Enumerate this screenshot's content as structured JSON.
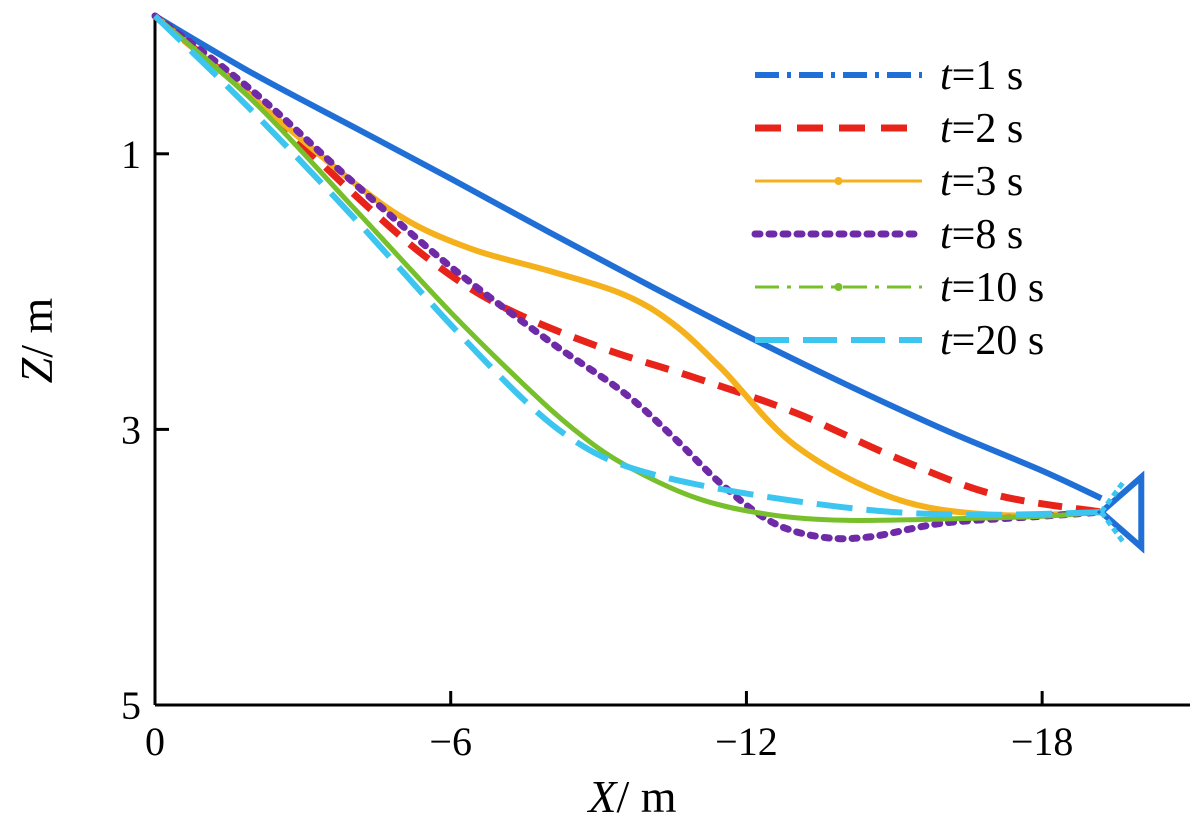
{
  "chart_data": {
    "type": "line",
    "xlabel": {
      "var": "X",
      "unit": "/ m"
    },
    "ylabel": {
      "var": "Z",
      "unit": "/ m"
    },
    "xlim": [
      0,
      -21
    ],
    "ylim": [
      0,
      5
    ],
    "y_inverted": true,
    "x_ticks": [
      0,
      -6,
      -12,
      -18
    ],
    "x_tick_labels": [
      "0",
      "−6",
      "−12",
      "−18"
    ],
    "y_ticks": [
      1,
      3,
      5
    ],
    "y_tick_labels": [
      "1",
      "3",
      "5"
    ],
    "grid": false,
    "legend_position": "top-right",
    "series": [
      {
        "name": "t=1 s",
        "name_var": "t",
        "name_rest": "=1 s",
        "color": "#1f6fd6",
        "dash": "solid",
        "legend_dash": "dashdot",
        "width": 6,
        "x": [
          0,
          -2,
          -4,
          -6,
          -8,
          -10,
          -12,
          -14,
          -16,
          -18,
          -19.2
        ],
        "y": [
          0,
          0.42,
          0.8,
          1.18,
          1.57,
          1.95,
          2.32,
          2.67,
          3.0,
          3.3,
          3.5
        ]
      },
      {
        "name": "t=2 s",
        "name_var": "t",
        "name_rest": "=2 s",
        "color": "#e8231a",
        "dash": "dashed",
        "legend_dash": "dashed",
        "width": 7,
        "x": [
          0,
          -2,
          -4,
          -5.5,
          -7,
          -9,
          -11,
          -13,
          -15,
          -17,
          -19.2
        ],
        "y": [
          0,
          0.6,
          1.28,
          1.75,
          2.1,
          2.4,
          2.63,
          2.88,
          3.2,
          3.47,
          3.6
        ]
      },
      {
        "name": "t=3 s",
        "name_var": "t",
        "name_rest": "=3 s",
        "color": "#f5b11b",
        "dash": "solid",
        "legend_dash": "solid-marker",
        "width": 6,
        "x": [
          0,
          -2,
          -4,
          -5.2,
          -6.5,
          -8,
          -9.5,
          -10.5,
          -11.5,
          -13,
          -15,
          -17,
          -19.2
        ],
        "y": [
          0,
          0.6,
          1.2,
          1.5,
          1.7,
          1.85,
          2.02,
          2.23,
          2.56,
          3.12,
          3.5,
          3.62,
          3.6
        ]
      },
      {
        "name": "t=8 s",
        "name_var": "t",
        "name_rest": "=8 s",
        "color": "#6f2aa8",
        "dash": "dotted",
        "legend_dash": "dotted",
        "width": 7,
        "x": [
          0,
          -2,
          -4,
          -6,
          -8,
          -9.5,
          -10.5,
          -11.5,
          -12.5,
          -13.5,
          -14.5,
          -16,
          -18,
          -19.2
        ],
        "y": [
          0,
          0.55,
          1.2,
          1.82,
          2.36,
          2.73,
          3.05,
          3.4,
          3.67,
          3.78,
          3.78,
          3.68,
          3.63,
          3.6
        ]
      },
      {
        "name": "t=10 s",
        "name_var": "t",
        "name_rest": "=10 s",
        "color": "#77bf2b",
        "dash": "solid",
        "legend_dash": "dashdot-marker",
        "width": 5,
        "x": [
          0,
          -2,
          -4,
          -6,
          -7.5,
          -8.5,
          -9.5,
          -11,
          -12.5,
          -14,
          -16,
          -18,
          -19.2
        ],
        "y": [
          0,
          0.62,
          1.38,
          2.15,
          2.68,
          3.0,
          3.25,
          3.5,
          3.62,
          3.66,
          3.65,
          3.63,
          3.6
        ]
      },
      {
        "name": "t=20 s",
        "name_var": "t",
        "name_rest": "=20 s",
        "color": "#3cc6ef",
        "dash": "longdash",
        "legend_dash": "longdash",
        "width": 6,
        "x": [
          0,
          -2,
          -4,
          -6,
          -7.5,
          -8.5,
          -9.5,
          -11,
          -13,
          -15,
          -17,
          -19.2
        ],
        "y": [
          0,
          0.7,
          1.45,
          2.24,
          2.79,
          3.08,
          3.26,
          3.4,
          3.52,
          3.6,
          3.62,
          3.6
        ]
      }
    ]
  }
}
